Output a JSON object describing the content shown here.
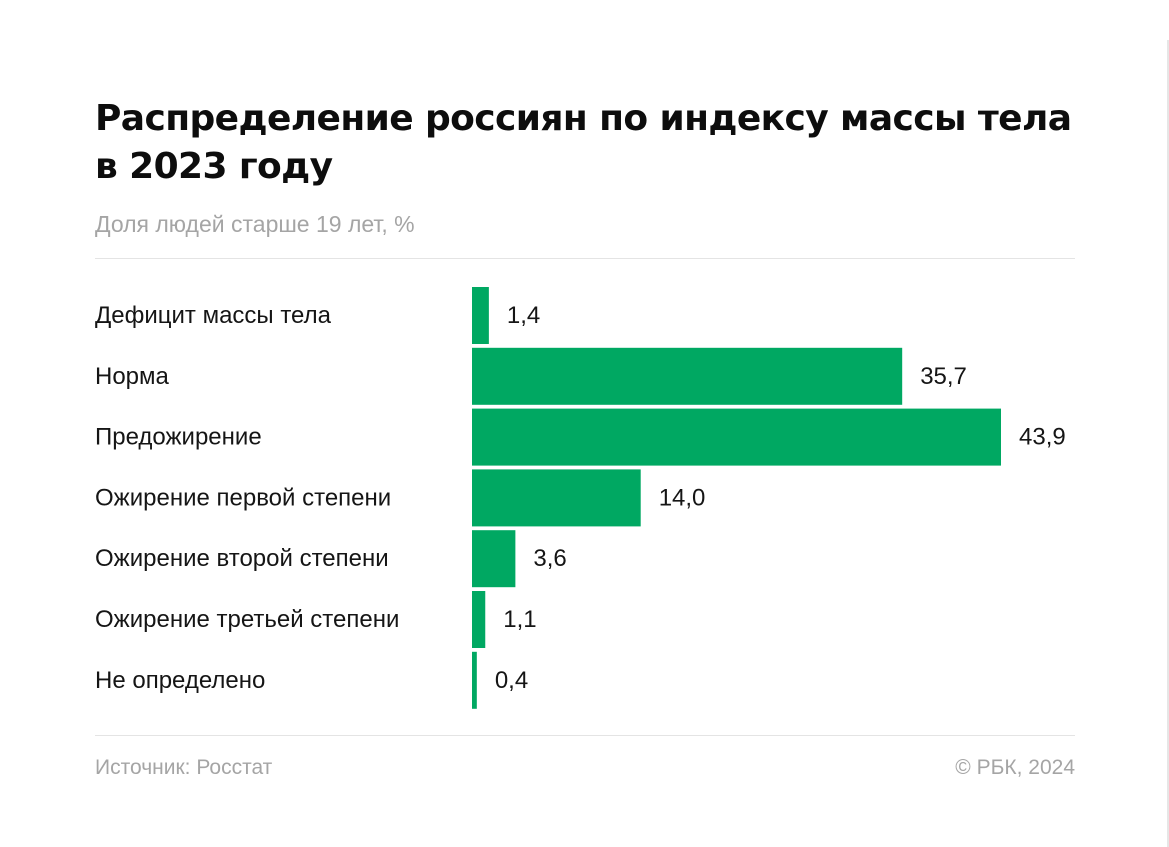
{
  "title": "Распределение россиян по индексу массы тела в 2023 году",
  "subtitle": "Доля людей старше 19 лет, %",
  "footer": {
    "source": "Источник: Росстат",
    "copyright": "© РБК, 2024"
  },
  "colors": {
    "bar": "#00a862",
    "title": "#0d0d0d",
    "muted": "#a5a5a5"
  },
  "chart_data": {
    "type": "bar",
    "orientation": "horizontal",
    "categories": [
      "Дефицит массы тела",
      "Норма",
      "Предожирение",
      "Ожирение первой степени",
      "Ожирение второй степени",
      "Ожирение третьей степени",
      "Не определено"
    ],
    "values": [
      1.4,
      35.7,
      43.9,
      14.0,
      3.6,
      1.1,
      0.4
    ],
    "value_labels": [
      "1,4",
      "35,7",
      "43,9",
      "14,0",
      "3,6",
      "1,1",
      "0,4"
    ],
    "xlim": [
      0,
      43.9
    ],
    "grid": false,
    "legend": "none"
  }
}
